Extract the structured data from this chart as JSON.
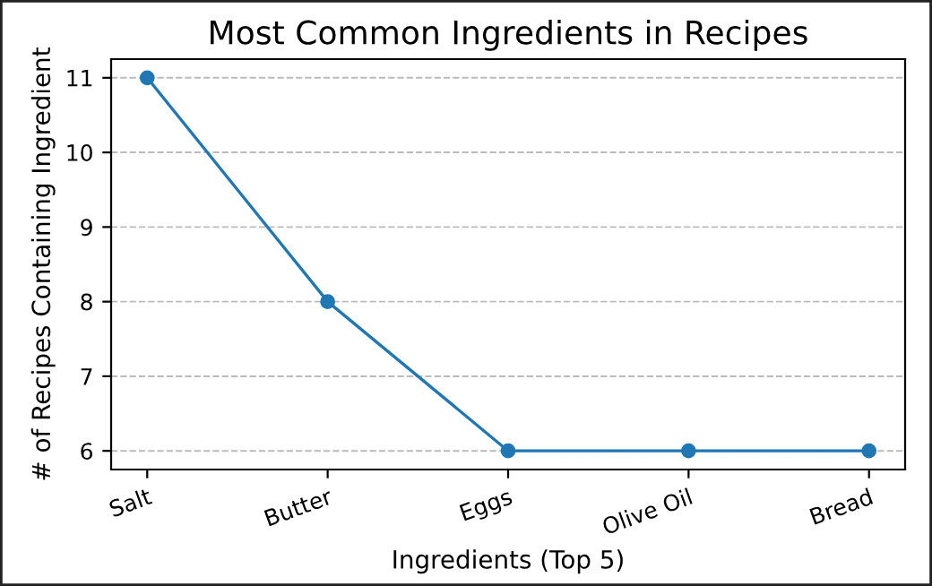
{
  "chart_data": {
    "type": "line",
    "title": "Most Common Ingredients in Recipes",
    "xlabel": "Ingredients (Top 5)",
    "ylabel": "# of Recipes Containing Ingredient",
    "categories": [
      "Salt",
      "Butter",
      "Eggs",
      "Olive Oil",
      "Bread"
    ],
    "series": [
      {
        "color": "#1f77b4",
        "values": [
          11,
          8,
          6,
          6,
          6
        ]
      }
    ],
    "ylim": [
      5.75,
      11.25
    ],
    "yticks": [
      6,
      7,
      8,
      9,
      10,
      11
    ],
    "grid": "y",
    "marker": "circle",
    "line_style": "solid",
    "legend": false
  }
}
